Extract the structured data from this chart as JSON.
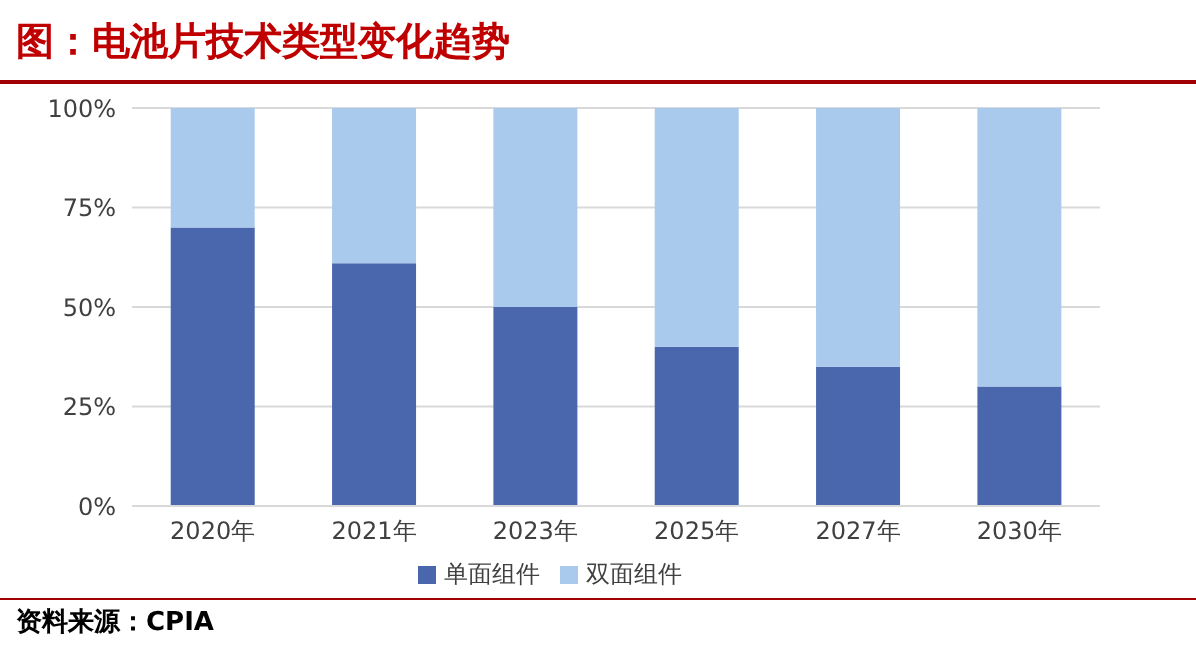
{
  "chart_data": {
    "type": "bar",
    "title": "图：电池片技术类型变化趋势",
    "stacked": true,
    "categories": [
      "2020年",
      "2021年",
      "2023年",
      "2025年",
      "2027年",
      "2030年"
    ],
    "series": [
      {
        "name": "单面组件",
        "color": "#4a67ad",
        "values": [
          70,
          61,
          50,
          40,
          35,
          30
        ]
      },
      {
        "name": "双面组件",
        "color": "#a9caec",
        "values": [
          30,
          39,
          50,
          60,
          65,
          70
        ]
      }
    ],
    "ylim": [
      0,
      100
    ],
    "yticks": [
      {
        "value": 0,
        "label": "0%"
      },
      {
        "value": 25,
        "label": "25%"
      },
      {
        "value": 50,
        "label": "50%"
      },
      {
        "value": 75,
        "label": "75%"
      },
      {
        "value": 100,
        "label": "100%"
      }
    ],
    "grid": "y",
    "legend": "bottom",
    "annotations": [
      "资料来源：CPIA"
    ]
  }
}
